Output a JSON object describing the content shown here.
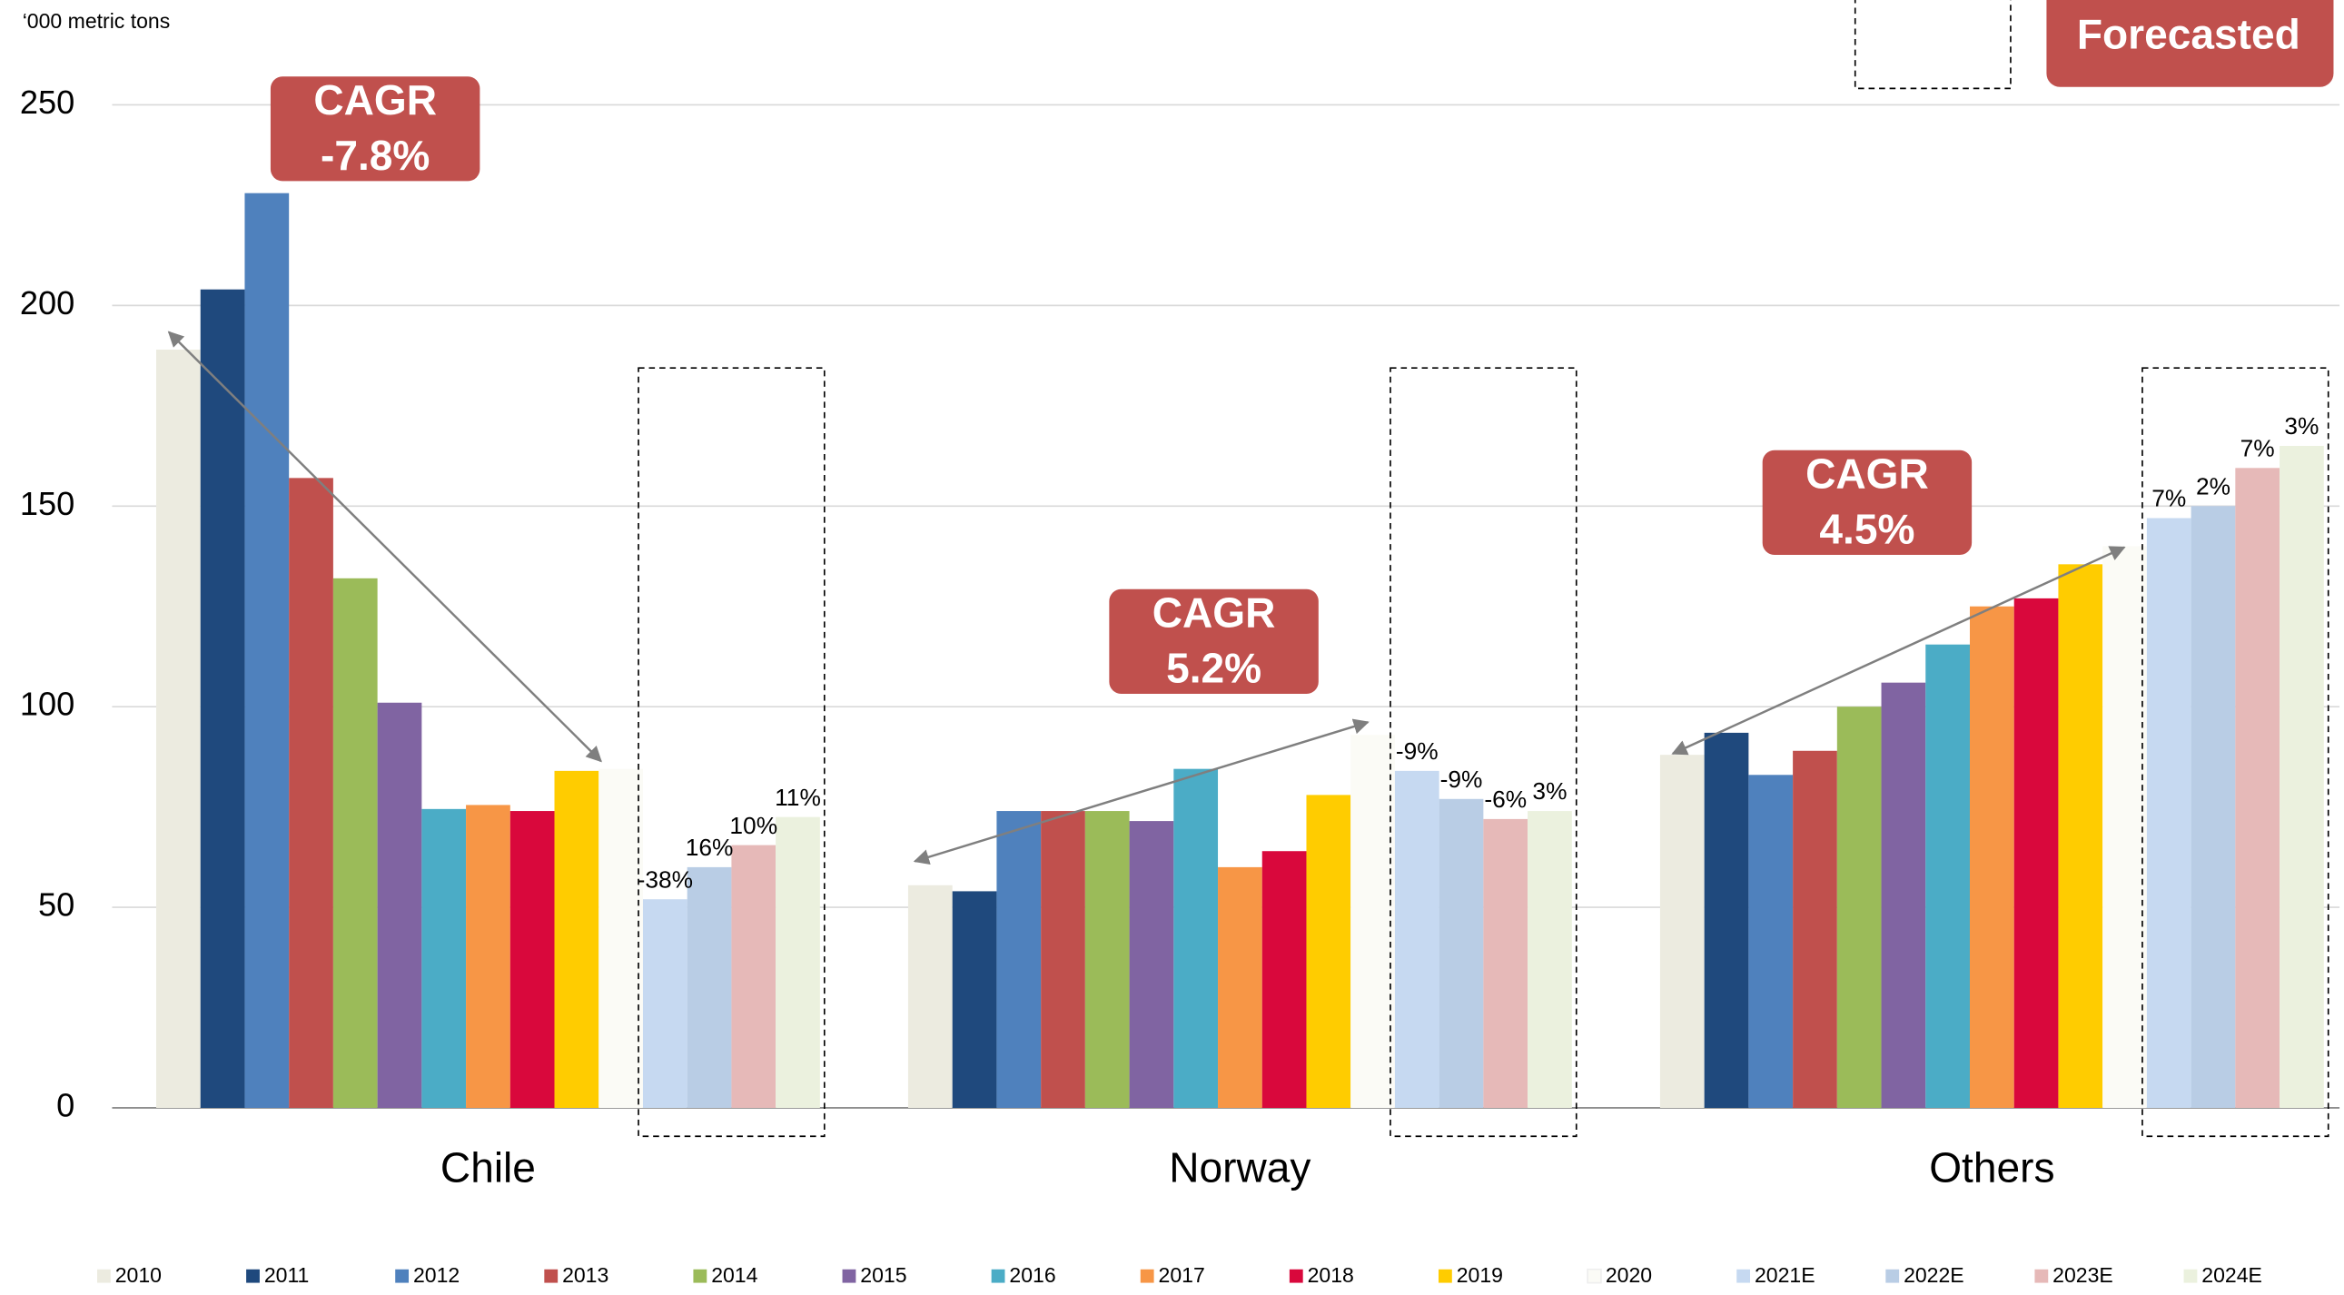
{
  "chart_data": {
    "type": "bar",
    "y_axis_label": "‘000 metric tons",
    "categories": [
      "Chile",
      "Norway",
      "Others"
    ],
    "ylim": [
      0,
      250
    ],
    "yticks": [
      0,
      50,
      100,
      150,
      200,
      250
    ],
    "grid": true,
    "legend": "bottom",
    "series": [
      {
        "name": "2010",
        "color": "#ecebe0",
        "values": [
          189,
          55.5,
          88
        ]
      },
      {
        "name": "2011",
        "color": "#1f497d",
        "values": [
          204,
          54,
          93.5
        ]
      },
      {
        "name": "2012",
        "color": "#4f81bd",
        "values": [
          228,
          74,
          83
        ]
      },
      {
        "name": "2013",
        "color": "#c0504d",
        "values": [
          157,
          74,
          89
        ]
      },
      {
        "name": "2014",
        "color": "#9bbb59",
        "values": [
          132,
          74,
          100
        ]
      },
      {
        "name": "2015",
        "color": "#8064a2",
        "values": [
          101,
          71.5,
          106
        ]
      },
      {
        "name": "2016",
        "color": "#4bacc6",
        "values": [
          74.5,
          84.5,
          115.5
        ]
      },
      {
        "name": "2017",
        "color": "#f79646",
        "values": [
          75.5,
          60,
          125
        ]
      },
      {
        "name": "2018",
        "color": "#d9083c",
        "values": [
          74,
          64,
          127
        ]
      },
      {
        "name": "2019",
        "color": "#ffcc00",
        "values": [
          84,
          78,
          135.5
        ]
      },
      {
        "name": "2020",
        "color": "#fbfbf6",
        "values": [
          84.5,
          93,
          140
        ]
      },
      {
        "name": "2021E",
        "color": "#c6d9f1",
        "values": [
          52,
          84,
          147
        ]
      },
      {
        "name": "2022E",
        "color": "#b9cde5",
        "values": [
          60,
          77,
          150
        ]
      },
      {
        "name": "2023E",
        "color": "#e6b9b8",
        "values": [
          65.5,
          72,
          159.5
        ]
      },
      {
        "name": "2024E",
        "color": "#ebf1de",
        "values": [
          72.5,
          74,
          165
        ]
      }
    ],
    "growth_labels": [
      [
        "-38%",
        "16%",
        "10%",
        "11%"
      ],
      [
        "-9%",
        "-9%",
        "-6%",
        "3%"
      ],
      [
        "7%",
        "2%",
        "7%",
        "3%"
      ]
    ],
    "cagr_labels": [
      [
        "CAGR",
        "-7.8%"
      ],
      [
        "CAGR",
        "5.2%"
      ],
      [
        "CAGR",
        "4.5%"
      ]
    ],
    "forecast_legend": "Forecasted"
  }
}
